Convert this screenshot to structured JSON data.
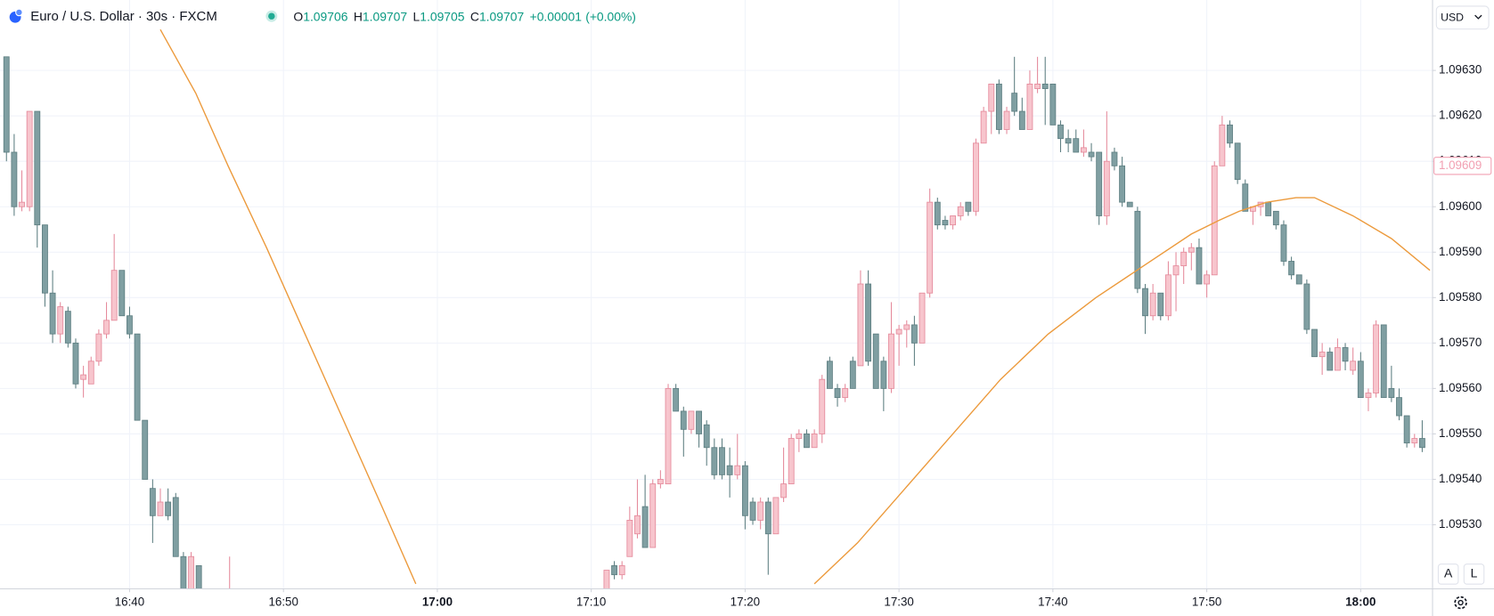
{
  "header": {
    "symbol": "Euro / U.S. Dollar · 30s · FXCM",
    "ohlc": [
      {
        "key": "O",
        "value": "1.09706"
      },
      {
        "key": "H",
        "value": "1.09707"
      },
      {
        "key": "L",
        "value": "1.09705"
      },
      {
        "key": "C",
        "value": "1.09707"
      }
    ],
    "change": "+0.00001",
    "change_pct": "(+0.00%)",
    "currency": "USD",
    "buttons": [
      "A",
      "L"
    ]
  },
  "chart_data": {
    "type": "candlestick",
    "x": [
      992.0,
      992.5,
      993.0,
      993.5,
      994.0,
      994.5,
      995.0,
      995.5,
      996.0,
      996.5,
      997.0,
      997.5,
      998.0,
      998.5,
      999.0,
      999.5,
      1000.0,
      1000.5,
      1001.0,
      1001.5,
      1002.0,
      1002.5,
      1003.0,
      1003.5,
      1004.0,
      1004.5,
      1006.5,
      1031.0,
      1031.5,
      1032.0,
      1032.5,
      1033.0,
      1033.5,
      1034.0,
      1034.5,
      1035.0,
      1035.5,
      1036.0,
      1036.5,
      1037.0,
      1037.5,
      1038.0,
      1038.5,
      1039.0,
      1039.5,
      1040.0,
      1040.5,
      1041.0,
      1041.5,
      1042.0,
      1042.5,
      1043.0,
      1043.5,
      1044.0,
      1044.5,
      1045.0,
      1045.5,
      1046.0,
      1046.5,
      1047.0,
      1047.5,
      1048.0,
      1048.5,
      1049.0,
      1049.5,
      1050.0,
      1050.5,
      1051.0,
      1051.5,
      1052.0,
      1052.5,
      1053.0,
      1053.5,
      1054.0,
      1054.5,
      1055.0,
      1055.5,
      1056.0,
      1056.5,
      1057.0,
      1057.5,
      1058.0,
      1058.5,
      1059.0,
      1059.5,
      1060.0,
      1060.5,
      1061.0,
      1061.5,
      1062.0,
      1062.5,
      1063.0,
      1063.5,
      1064.0,
      1064.5,
      1065.0,
      1065.5,
      1066.0,
      1066.5,
      1067.0,
      1067.5,
      1068.0,
      1068.5,
      1069.0,
      1069.5,
      1070.0,
      1070.5,
      1071.0,
      1071.5,
      1072.0,
      1072.5,
      1073.0,
      1073.5,
      1074.0,
      1074.5,
      1075.0,
      1075.5,
      1076.0,
      1076.5,
      1077.0,
      1077.5,
      1078.0,
      1078.5,
      1079.0,
      1079.5,
      1080.0,
      1080.5,
      1081.0,
      1081.5,
      1082.0,
      1082.5,
      1083.0,
      1083.5,
      1084.0
    ],
    "open": [
      1.09633,
      1.09612,
      1.096,
      1.096,
      1.09621,
      1.09596,
      1.09581,
      1.09572,
      1.09577,
      1.0957,
      1.09562,
      1.09561,
      1.09566,
      1.09572,
      1.09575,
      1.09586,
      1.09576,
      1.09572,
      1.09553,
      1.09538,
      1.09532,
      1.09535,
      1.09536,
      1.09523,
      1.09513,
      1.09521,
      1.09512,
      1.09513,
      1.09521,
      1.09519,
      1.09523,
      1.09528,
      1.09534,
      1.09525,
      1.09539,
      1.09539,
      1.0956,
      1.09555,
      1.09551,
      1.09555,
      1.09552,
      1.09547,
      1.09547,
      1.09543,
      1.09541,
      1.09543,
      1.09535,
      1.09531,
      1.09535,
      1.09528,
      1.09536,
      1.09539,
      1.09549,
      1.0955,
      1.09547,
      1.0955,
      1.09566,
      1.0956,
      1.09558,
      1.09566,
      1.09565,
      1.09583,
      1.09572,
      1.09566,
      1.0956,
      1.09572,
      1.09573,
      1.09574,
      1.0957,
      1.09581,
      1.09601,
      1.09597,
      1.09596,
      1.09598,
      1.09601,
      1.09599,
      1.09614,
      1.09621,
      1.09627,
      1.09617,
      1.09625,
      1.09621,
      1.09617,
      1.09626,
      1.09627,
      1.09627,
      1.09618,
      1.09615,
      1.09615,
      1.09612,
      1.09612,
      1.09612,
      1.09598,
      1.09612,
      1.09609,
      1.09601,
      1.09599,
      1.09582,
      1.09576,
      1.09581,
      1.09576,
      1.09585,
      1.09587,
      1.0959,
      1.09591,
      1.09583,
      1.09585,
      1.09609,
      1.09618,
      1.09614,
      1.09605,
      1.09599,
      1.096,
      1.09601,
      1.09599,
      1.09596,
      1.09588,
      1.09585,
      1.09583,
      1.09573,
      1.09567,
      1.09568,
      1.09564,
      1.09569,
      1.09564,
      1.09566,
      1.09558,
      1.09559,
      1.09574,
      1.0956,
      1.09558,
      1.09554,
      1.09548,
      1.09549
    ],
    "high": [
      1.09633,
      1.09616,
      1.09608,
      1.09621,
      1.09621,
      1.09596,
      1.09586,
      1.09579,
      1.09578,
      1.09571,
      1.09565,
      1.09567,
      1.09573,
      1.09579,
      1.09594,
      1.09586,
      1.09578,
      1.09572,
      1.09553,
      1.0954,
      1.09538,
      1.09538,
      1.09537,
      1.09524,
      1.09524,
      1.09521,
      1.09523,
      1.0952,
      1.09522,
      1.09522,
      1.09534,
      1.0954,
      1.09541,
      1.0954,
      1.09542,
      1.09561,
      1.09561,
      1.09556,
      1.09555,
      1.09555,
      1.09553,
      1.09549,
      1.09549,
      1.09547,
      1.0955,
      1.09544,
      1.09536,
      1.09536,
      1.09536,
      1.09536,
      1.09547,
      1.0955,
      1.09551,
      1.09551,
      1.09551,
      1.09563,
      1.09567,
      1.09561,
      1.09561,
      1.09567,
      1.09586,
      1.09586,
      1.09572,
      1.09567,
      1.09579,
      1.09574,
      1.09575,
      1.09576,
      1.09581,
      1.09604,
      1.09602,
      1.09598,
      1.09598,
      1.09601,
      1.09601,
      1.09615,
      1.09622,
      1.09627,
      1.09628,
      1.09622,
      1.09633,
      1.09624,
      1.0963,
      1.09633,
      1.09633,
      1.09627,
      1.09619,
      1.09617,
      1.09617,
      1.09617,
      1.09614,
      1.09612,
      1.09621,
      1.09613,
      1.09611,
      1.09601,
      1.096,
      1.09583,
      1.09583,
      1.09581,
      1.09588,
      1.0959,
      1.09591,
      1.09592,
      1.09593,
      1.09586,
      1.0961,
      1.0962,
      1.09619,
      1.09614,
      1.09606,
      1.096,
      1.09601,
      1.09601,
      1.09599,
      1.09597,
      1.09589,
      1.09585,
      1.09584,
      1.09573,
      1.0957,
      1.09569,
      1.09571,
      1.0957,
      1.09569,
      1.09568,
      1.0956,
      1.09575,
      1.09574,
      1.09565,
      1.0956,
      1.09554,
      1.0955,
      1.09553
    ],
    "low": [
      1.0961,
      1.09598,
      1.09599,
      1.09599,
      1.09591,
      1.09578,
      1.0957,
      1.0957,
      1.09569,
      1.0956,
      1.09558,
      1.09561,
      1.09565,
      1.09571,
      1.09575,
      1.09576,
      1.09571,
      1.09553,
      1.0954,
      1.09526,
      1.09532,
      1.09531,
      1.09523,
      1.0951,
      1.0951,
      1.0951,
      1.0951,
      1.0951,
      1.09518,
      1.09518,
      1.09523,
      1.09527,
      1.09525,
      1.09525,
      1.09538,
      1.09539,
      1.09555,
      1.09545,
      1.0955,
      1.09547,
      1.09543,
      1.0954,
      1.0954,
      1.09536,
      1.0954,
      1.09529,
      1.0953,
      1.09529,
      1.09519,
      1.09528,
      1.09535,
      1.09539,
      1.09546,
      1.09547,
      1.09547,
      1.09548,
      1.0956,
      1.09556,
      1.09557,
      1.0956,
      1.09565,
      1.09565,
      1.0956,
      1.09555,
      1.09559,
      1.09565,
      1.09569,
      1.09565,
      1.0957,
      1.0958,
      1.09595,
      1.09595,
      1.09595,
      1.09597,
      1.09598,
      1.09598,
      1.09614,
      1.09616,
      1.09616,
      1.09616,
      1.0962,
      1.09617,
      1.09617,
      1.09625,
      1.09618,
      1.09618,
      1.09612,
      1.09612,
      1.09612,
      1.09611,
      1.0961,
      1.09596,
      1.09596,
      1.09608,
      1.096,
      1.096,
      1.09581,
      1.09572,
      1.09575,
      1.09575,
      1.09575,
      1.09577,
      1.09583,
      1.09586,
      1.09583,
      1.0958,
      1.09585,
      1.09609,
      1.09613,
      1.09605,
      1.09599,
      1.09596,
      1.09598,
      1.09598,
      1.09595,
      1.09587,
      1.09584,
      1.09583,
      1.09572,
      1.09567,
      1.09563,
      1.09564,
      1.09564,
      1.09564,
      1.09563,
      1.09558,
      1.09555,
      1.09558,
      1.09558,
      1.09557,
      1.09553,
      1.09547,
      1.09547,
      1.09546
    ],
    "close": [
      1.09612,
      1.096,
      1.09601,
      1.09621,
      1.09596,
      1.09581,
      1.09572,
      1.09578,
      1.0957,
      1.09561,
      1.09563,
      1.09566,
      1.09572,
      1.09575,
      1.09586,
      1.09576,
      1.09572,
      1.09553,
      1.0954,
      1.09532,
      1.09535,
      1.09532,
      1.09523,
      1.09514,
      1.09523,
      1.09513,
      1.09514,
      1.0952,
      1.09519,
      1.09521,
      1.09531,
      1.09532,
      1.09525,
      1.09539,
      1.0954,
      1.0956,
      1.09555,
      1.09551,
      1.09555,
      1.0955,
      1.09547,
      1.09541,
      1.09541,
      1.09541,
      1.09543,
      1.09532,
      1.09531,
      1.09535,
      1.09528,
      1.09536,
      1.09539,
      1.09549,
      1.0955,
      1.09547,
      1.0955,
      1.09562,
      1.0956,
      1.09558,
      1.0956,
      1.0956,
      1.09583,
      1.09566,
      1.0956,
      1.0956,
      1.09572,
      1.09573,
      1.09574,
      1.0957,
      1.09581,
      1.09601,
      1.09596,
      1.09596,
      1.09598,
      1.096,
      1.09599,
      1.09614,
      1.09621,
      1.09627,
      1.09617,
      1.09621,
      1.09621,
      1.09617,
      1.09627,
      1.09627,
      1.09626,
      1.09618,
      1.09615,
      1.09614,
      1.09612,
      1.09613,
      1.09611,
      1.09598,
      1.0961,
      1.09609,
      1.09601,
      1.096,
      1.09582,
      1.09576,
      1.09581,
      1.09576,
      1.09585,
      1.09587,
      1.0959,
      1.09591,
      1.09583,
      1.09585,
      1.09609,
      1.09618,
      1.09614,
      1.09606,
      1.09599,
      1.096,
      1.09601,
      1.09598,
      1.09596,
      1.09588,
      1.09585,
      1.09583,
      1.09573,
      1.09567,
      1.09568,
      1.09564,
      1.09569,
      1.09566,
      1.09566,
      1.09558,
      1.09559,
      1.09574,
      1.09558,
      1.09558,
      1.09554,
      1.09548,
      1.09549,
      1.09547
    ],
    "up_color": "#f7c5cd",
    "up_border": "#e58b9c",
    "down_color": "#809fa2",
    "down_border": "#5e7f82",
    "ma": {
      "color": "#ec9a3c",
      "x": [
        1002.0,
        1004.3,
        1006.4,
        1008.9,
        1011.4,
        1013.9,
        1016.4,
        1018.6,
        null,
        1044.5,
        1047.3,
        1050.4,
        1053.5,
        1056.6,
        1059.7,
        1062.8,
        1065.9,
        1069.0,
        1070.8,
        1072.1,
        1073.9,
        1075.8,
        1077.0,
        1079.5,
        1082.0,
        1084.5
      ],
      "values": [
        1.09639,
        1.09625,
        1.09609,
        1.09591,
        1.09572,
        1.09553,
        1.09534,
        1.09517,
        null,
        1.09517,
        1.09526,
        1.09538,
        1.0955,
        1.09562,
        1.09572,
        1.0958,
        1.09587,
        1.09594,
        1.09597,
        1.09599,
        1.09601,
        1.09602,
        1.09602,
        1.09598,
        1.09593,
        1.09586
      ]
    },
    "last_price": 1.09609,
    "last_price_color": "#f2a0b2",
    "xlim": [
      991.58,
      1084.64
    ],
    "ylim": [
      1.09516,
      1.096455
    ],
    "xticks": [
      {
        "value": 1000,
        "label": "16:40"
      },
      {
        "value": 1010,
        "label": "16:50"
      },
      {
        "value": 1020,
        "label": "17:00",
        "bold": true
      },
      {
        "value": 1030,
        "label": "17:10"
      },
      {
        "value": 1040,
        "label": "17:20"
      },
      {
        "value": 1050,
        "label": "17:30"
      },
      {
        "value": 1060,
        "label": "17:40"
      },
      {
        "value": 1070,
        "label": "17:50"
      },
      {
        "value": 1080,
        "label": "18:00",
        "bold": true
      }
    ],
    "yticks": [
      {
        "value": 1.0953,
        "label": "1.09530"
      },
      {
        "value": 1.0954,
        "label": "1.09540"
      },
      {
        "value": 1.0955,
        "label": "1.09550"
      },
      {
        "value": 1.0956,
        "label": "1.09560"
      },
      {
        "value": 1.0957,
        "label": "1.09570"
      },
      {
        "value": 1.0958,
        "label": "1.09580"
      },
      {
        "value": 1.0959,
        "label": "1.09590"
      },
      {
        "value": 1.096,
        "label": "1.09600"
      },
      {
        "value": 1.0961,
        "label": "1.09610"
      },
      {
        "value": 1.0962,
        "label": "1.09620"
      },
      {
        "value": 1.0963,
        "label": "1.09630"
      }
    ],
    "grid": true
  }
}
